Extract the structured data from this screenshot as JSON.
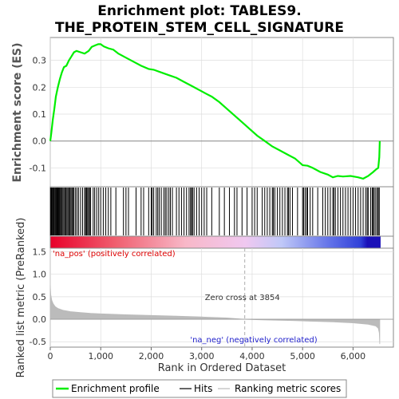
{
  "chart_data": {
    "type": "line",
    "title_line1": "Enrichment plot: TABLES9.",
    "title_line2": "THE_PROTEIN_STEM_CELL_SIGNATURE",
    "ylabel_top": "Enrichment score (ES)",
    "ylabel_bottom": "Ranked list metric (PreRanked)",
    "xlabel": "Rank in Ordered Dataset",
    "x_ticks": [
      "0",
      "1,000",
      "2,000",
      "3,000",
      "4,000",
      "5,000",
      "6,000"
    ],
    "x_tick_values": [
      0,
      1000,
      2000,
      3000,
      4000,
      5000,
      6000
    ],
    "xlim": [
      0,
      6800
    ],
    "es_ylim": [
      -0.17,
      0.385
    ],
    "es_ticks": [
      "0.0",
      "0.1",
      "0.2",
      "0.3",
      "-0.1"
    ],
    "es_tick_values": [
      0.0,
      0.1,
      0.2,
      0.3,
      -0.1
    ],
    "metric_ylim": [
      -0.62,
      1.58
    ],
    "metric_ticks": [
      "1.5",
      "1.0",
      "0.5",
      "0.0",
      "-0.5"
    ],
    "metric_tick_values": [
      1.5,
      1.0,
      0.5,
      0.0,
      -0.5
    ],
    "es_curve": [
      [
        0,
        0.0
      ],
      [
        20,
        0.03
      ],
      [
        50,
        0.08
      ],
      [
        80,
        0.12
      ],
      [
        110,
        0.165
      ],
      [
        150,
        0.2
      ],
      [
        190,
        0.23
      ],
      [
        230,
        0.255
      ],
      [
        270,
        0.275
      ],
      [
        320,
        0.28
      ],
      [
        370,
        0.3
      ],
      [
        420,
        0.315
      ],
      [
        470,
        0.33
      ],
      [
        520,
        0.335
      ],
      [
        600,
        0.33
      ],
      [
        680,
        0.325
      ],
      [
        760,
        0.335
      ],
      [
        820,
        0.35
      ],
      [
        880,
        0.355
      ],
      [
        950,
        0.36
      ],
      [
        1000,
        0.36
      ],
      [
        1060,
        0.352
      ],
      [
        1150,
        0.345
      ],
      [
        1250,
        0.34
      ],
      [
        1350,
        0.325
      ],
      [
        1500,
        0.31
      ],
      [
        1650,
        0.295
      ],
      [
        1800,
        0.28
      ],
      [
        1950,
        0.268
      ],
      [
        2050,
        0.265
      ],
      [
        2200,
        0.255
      ],
      [
        2350,
        0.245
      ],
      [
        2500,
        0.235
      ],
      [
        2650,
        0.22
      ],
      [
        2800,
        0.205
      ],
      [
        2950,
        0.19
      ],
      [
        3100,
        0.175
      ],
      [
        3200,
        0.165
      ],
      [
        3350,
        0.145
      ],
      [
        3500,
        0.12
      ],
      [
        3650,
        0.095
      ],
      [
        3800,
        0.07
      ],
      [
        3950,
        0.045
      ],
      [
        4100,
        0.02
      ],
      [
        4250,
        0.0
      ],
      [
        4400,
        -0.02
      ],
      [
        4550,
        -0.035
      ],
      [
        4700,
        -0.05
      ],
      [
        4850,
        -0.065
      ],
      [
        5000,
        -0.09
      ],
      [
        5100,
        -0.092
      ],
      [
        5200,
        -0.1
      ],
      [
        5350,
        -0.115
      ],
      [
        5500,
        -0.125
      ],
      [
        5600,
        -0.135
      ],
      [
        5700,
        -0.13
      ],
      [
        5800,
        -0.132
      ],
      [
        5950,
        -0.13
      ],
      [
        6100,
        -0.135
      ],
      [
        6200,
        -0.14
      ],
      [
        6300,
        -0.13
      ],
      [
        6400,
        -0.115
      ],
      [
        6460,
        -0.105
      ],
      [
        6500,
        -0.1
      ],
      [
        6520,
        -0.06
      ],
      [
        6530,
        0.0
      ]
    ],
    "hits": [
      5,
      18,
      30,
      45,
      60,
      72,
      90,
      105,
      120,
      135,
      150,
      165,
      180,
      195,
      210,
      230,
      250,
      270,
      290,
      310,
      330,
      350,
      370,
      390,
      410,
      430,
      450,
      470,
      500,
      530,
      560,
      600,
      640,
      680,
      700,
      720,
      740,
      760,
      780,
      800,
      850,
      880,
      920,
      960,
      1000,
      1050,
      1100,
      1150,
      1200,
      1300,
      1450,
      1500,
      1550,
      1700,
      1800,
      1850,
      1950,
      2000,
      2020,
      2050,
      2100,
      2130,
      2160,
      2200,
      2250,
      2280,
      2310,
      2350,
      2380,
      2420,
      2500,
      2550,
      2600,
      2650,
      2700,
      2750,
      2780,
      2800,
      2820,
      2850,
      2900,
      2950,
      3000,
      3050,
      3100,
      3200,
      3350,
      3450,
      3550,
      3650,
      3700,
      3800,
      3900,
      4000,
      4050,
      4100,
      4200,
      4250,
      4300,
      4350,
      4400,
      4420,
      4450,
      4500,
      4550,
      4600,
      4650,
      4700,
      4720,
      4750,
      4800,
      4900,
      5000,
      5020,
      5050,
      5080,
      5100,
      5150,
      5200,
      5300,
      5400,
      5450,
      5500,
      5550,
      5600,
      5620,
      5650,
      5700,
      5750,
      5800,
      5850,
      5900,
      5950,
      6000,
      6050,
      6100,
      6150,
      6200,
      6250,
      6280,
      6300,
      6350,
      6380,
      6400,
      6420,
      6450,
      6480,
      6500,
      6520
    ],
    "metric_curve": [
      [
        0,
        0.75
      ],
      [
        10,
        0.55
      ],
      [
        30,
        0.42
      ],
      [
        60,
        0.34
      ],
      [
        100,
        0.28
      ],
      [
        150,
        0.24
      ],
      [
        250,
        0.2
      ],
      [
        400,
        0.17
      ],
      [
        600,
        0.15
      ],
      [
        800,
        0.13
      ],
      [
        1000,
        0.12
      ],
      [
        1500,
        0.1
      ],
      [
        2000,
        0.085
      ],
      [
        2500,
        0.07
      ],
      [
        3000,
        0.05
      ],
      [
        3500,
        0.03
      ],
      [
        3854,
        0.0
      ],
      [
        4200,
        -0.015
      ],
      [
        4800,
        -0.03
      ],
      [
        5200,
        -0.045
      ],
      [
        5600,
        -0.06
      ],
      [
        6000,
        -0.08
      ],
      [
        6300,
        -0.11
      ],
      [
        6450,
        -0.15
      ],
      [
        6500,
        -0.2
      ],
      [
        6520,
        -0.3
      ],
      [
        6530,
        -0.55
      ]
    ],
    "zero_cross": 3854,
    "zero_cross_label": "Zero cross at 3854",
    "pos_label": "'na_pos' (positively correlated)",
    "neg_label": "'na_neg' (negatively correlated)",
    "legend": [
      "Enrichment profile",
      "Hits",
      "Ranking metric scores"
    ],
    "colors": {
      "es": "#00ee00",
      "hits": "#000000",
      "metric_fill": "#bbbbbb",
      "pos": "#dd0000",
      "neg": "#2222cc",
      "grid": "#dddddd"
    }
  }
}
